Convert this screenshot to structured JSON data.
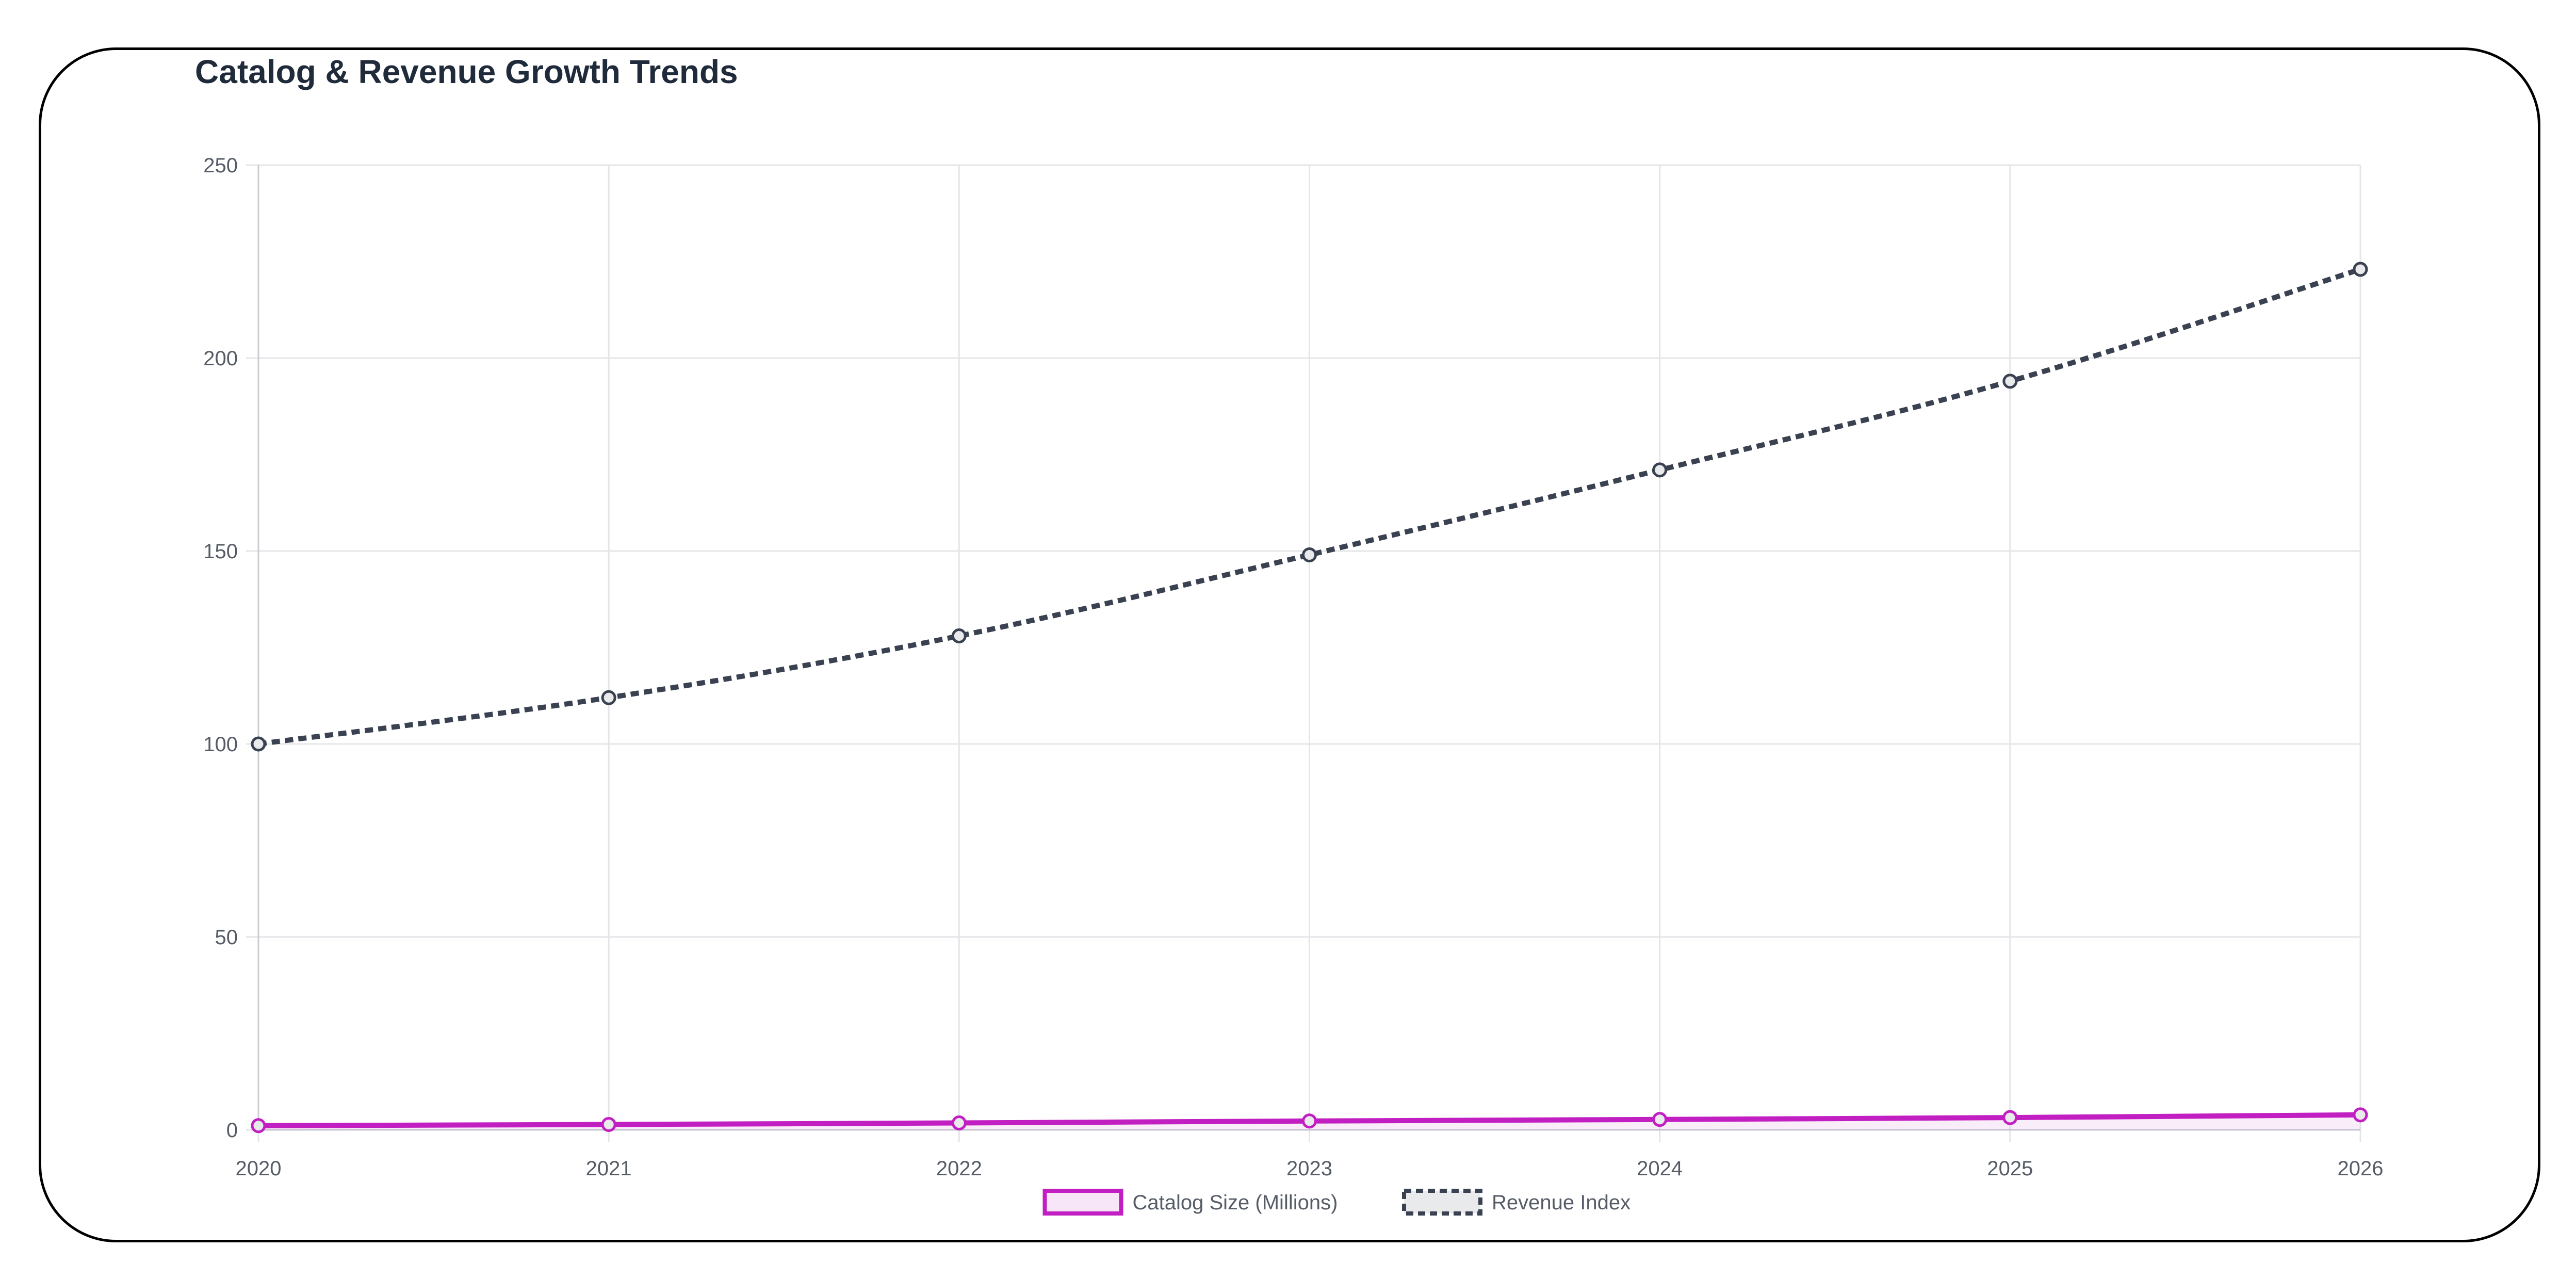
{
  "title": "Catalog & Revenue Growth Trends",
  "chart_data": {
    "type": "line",
    "title": "Catalog & Revenue Growth Trends",
    "x": [
      "2020",
      "2021",
      "2022",
      "2023",
      "2024",
      "2025",
      "2026"
    ],
    "xlabel": "",
    "ylabel": "",
    "ylim": [
      0,
      250
    ],
    "yticks": [
      "0",
      "50",
      "100",
      "150",
      "200",
      "250"
    ],
    "grid": true,
    "legend_position": "bottom",
    "series": [
      {
        "name": "Catalog Size (Millions)",
        "values": [
          1.1,
          1.4,
          1.8,
          2.3,
          2.7,
          3.2,
          3.9
        ],
        "color": "#c21fc2",
        "style": "solid"
      },
      {
        "name": "Revenue Index",
        "values": [
          100,
          112,
          128,
          149,
          171,
          194,
          223
        ],
        "color": "#3a4150",
        "style": "dotted"
      }
    ]
  }
}
